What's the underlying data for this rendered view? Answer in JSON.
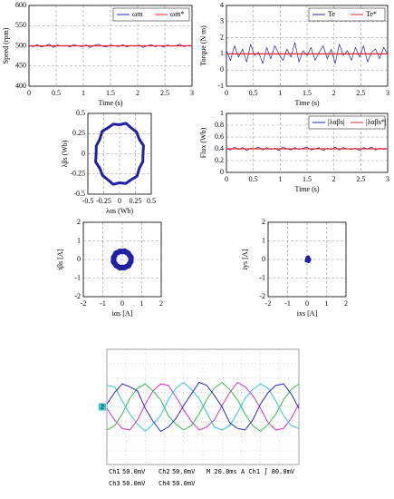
{
  "chart_data": [
    {
      "type": "line",
      "ylabel": "Speed (rpm)",
      "xlabel": "Time (s)",
      "xlim": [
        0,
        3
      ],
      "xticks": [
        0,
        0.5,
        1,
        1.5,
        2,
        2.5,
        3
      ],
      "ylim": [
        400,
        600
      ],
      "yticks": [
        400,
        450,
        500,
        550,
        600
      ],
      "grid": true,
      "legend": "upper right",
      "x": [
        0,
        0.075,
        0.15,
        0.225,
        0.3,
        0.375,
        0.45,
        0.525,
        0.6,
        0.675,
        0.75,
        0.825,
        0.9,
        0.975,
        1.05,
        1.125,
        1.2,
        1.275,
        1.35,
        1.425,
        1.5,
        1.575,
        1.65,
        1.725,
        1.8,
        1.875,
        1.95,
        2.025,
        2.1,
        2.175,
        2.25,
        2.325,
        2.4,
        2.475,
        2.55,
        2.625,
        2.7,
        2.775,
        2.85,
        2.925,
        3
      ],
      "series": [
        {
          "name": "ωm",
          "color": "#1f1fa8",
          "values": [
            501,
            498,
            503,
            497,
            500,
            504,
            496,
            502,
            499,
            501,
            497,
            503,
            500,
            498,
            502,
            496,
            501,
            504,
            499,
            497,
            502,
            500,
            498,
            503,
            497,
            501,
            499,
            502,
            496,
            500,
            503,
            498,
            501,
            497,
            502,
            499,
            500,
            504,
            498,
            501,
            500
          ]
        },
        {
          "name": "ωm*",
          "color": "#e8202a",
          "x": [
            0,
            3
          ],
          "values": [
            500,
            500
          ]
        }
      ]
    },
    {
      "type": "line",
      "ylabel": "Torque (N·m)",
      "xlabel": "Time (s)",
      "xlim": [
        0,
        3
      ],
      "xticks": [
        0,
        0.5,
        1,
        1.5,
        2,
        2.5,
        3
      ],
      "ylim": [
        -1,
        4
      ],
      "yticks": [
        -1,
        0,
        1,
        2,
        3,
        4
      ],
      "grid": true,
      "legend": "upper right",
      "x": [
        0,
        0.075,
        0.15,
        0.225,
        0.3,
        0.375,
        0.45,
        0.525,
        0.6,
        0.675,
        0.75,
        0.825,
        0.9,
        0.975,
        1.05,
        1.125,
        1.2,
        1.275,
        1.35,
        1.425,
        1.5,
        1.575,
        1.65,
        1.725,
        1.8,
        1.875,
        1.95,
        2.025,
        2.1,
        2.175,
        2.25,
        2.325,
        2.4,
        2.475,
        2.55,
        2.625,
        2.7,
        2.775,
        2.85,
        2.925,
        3
      ],
      "series": [
        {
          "name": "Te",
          "color": "#1f1fa8",
          "values": [
            1.2,
            0.6,
            1.5,
            0.8,
            1.3,
            0.5,
            1.6,
            0.9,
            1.1,
            0.4,
            1.4,
            0.7,
            1.5,
            1.0,
            0.6,
            1.3,
            0.8,
            1.7,
            0.5,
            1.2,
            0.9,
            1.4,
            0.6,
            1.1,
            1.5,
            0.7,
            1.3,
            0.4,
            1.6,
            0.9,
            1.2,
            0.6,
            1.4,
            0.8,
            1.5,
            0.5,
            1.1,
            1.3,
            0.7,
            1.4,
            1.0
          ]
        },
        {
          "name": "Te*",
          "color": "#e8202a",
          "x": [
            0,
            3
          ],
          "values": [
            1,
            1
          ]
        }
      ]
    },
    {
      "type": "line",
      "ylabel": "λβs (Wb)",
      "xlabel": "λαs (Wb)",
      "xlim": [
        -0.5,
        0.5
      ],
      "xticks": [
        -0.5,
        -0.25,
        0,
        0.25,
        0.5
      ],
      "ylim": [
        -0.5,
        0.5
      ],
      "yticks": [
        -0.5,
        -0.25,
        0,
        0.25,
        0.5
      ],
      "grid": true,
      "series": [
        {
          "color": "#1f1fa8",
          "x": [
            0.37,
            0.377,
            0.312,
            0.269,
            0.185,
            0.101,
            0,
            -0.098,
            -0.185,
            -0.276,
            -0.312,
            -0.367,
            -0.37,
            -0.377,
            -0.312,
            -0.269,
            -0.185,
            -0.101,
            0,
            0.098,
            0.185,
            0.276,
            0.312,
            0.367,
            0.37
          ],
          "values": [
            0,
            0.101,
            0.18,
            0.269,
            0.32,
            0.377,
            0.36,
            0.367,
            0.32,
            0.276,
            0.18,
            0.098,
            0,
            -0.101,
            -0.18,
            -0.269,
            -0.32,
            -0.377,
            -0.36,
            -0.367,
            -0.32,
            -0.276,
            -0.18,
            -0.098,
            0
          ]
        }
      ]
    },
    {
      "type": "line",
      "ylabel": "Flux (Wb)",
      "xlabel": "Time (s)",
      "xlim": [
        0,
        3
      ],
      "xticks": [
        0,
        0.5,
        1,
        1.5,
        2,
        2.5,
        3
      ],
      "ylim": [
        0,
        1
      ],
      "yticks": [
        0,
        0.2,
        0.4,
        0.6,
        0.8,
        1
      ],
      "grid": true,
      "legend": "upper right",
      "x": [
        0,
        0.075,
        0.15,
        0.225,
        0.3,
        0.375,
        0.45,
        0.525,
        0.6,
        0.675,
        0.75,
        0.825,
        0.9,
        0.975,
        1.05,
        1.125,
        1.2,
        1.275,
        1.35,
        1.425,
        1.5,
        1.575,
        1.65,
        1.725,
        1.8,
        1.875,
        1.95,
        2.025,
        2.1,
        2.175,
        2.25,
        2.325,
        2.4,
        2.475,
        2.55,
        2.625,
        2.7,
        2.775,
        2.85,
        2.925,
        3
      ],
      "series": [
        {
          "name": "|λαβs|",
          "color": "#1f1fa8",
          "values": [
            0.41,
            0.38,
            0.43,
            0.39,
            0.42,
            0.37,
            0.41,
            0.4,
            0.43,
            0.38,
            0.42,
            0.39,
            0.41,
            0.37,
            0.43,
            0.4,
            0.38,
            0.42,
            0.39,
            0.41,
            0.43,
            0.38,
            0.4,
            0.42,
            0.37,
            0.41,
            0.39,
            0.43,
            0.38,
            0.42,
            0.4,
            0.39,
            0.41,
            0.37,
            0.42,
            0.4,
            0.43,
            0.38,
            0.41,
            0.39,
            0.4
          ]
        },
        {
          "name": "|λαβs*|",
          "color": "#e8202a",
          "x": [
            0,
            3
          ],
          "values": [
            0.4,
            0.4
          ]
        }
      ]
    },
    {
      "type": "line",
      "ylabel": "iβs [A]",
      "xlabel": "iαs [A]",
      "xlim": [
        -2,
        2
      ],
      "xticks": [
        -2,
        -1,
        0,
        1,
        2
      ],
      "ylim": [
        -2,
        2
      ],
      "yticks": [
        -2,
        -1,
        0,
        1,
        2
      ],
      "grid": true,
      "series": [
        {
          "color": "#1f1fa8",
          "x": [
            0.44,
            0.45,
            0.37,
            0.32,
            0.22,
            0.12,
            0,
            -0.12,
            -0.22,
            -0.33,
            -0.37,
            -0.44,
            -0.44,
            -0.45,
            -0.37,
            -0.32,
            -0.22,
            -0.12,
            0,
            0.12,
            0.22,
            0.33,
            0.37,
            0.44,
            0.44
          ],
          "values": [
            0,
            0.12,
            0.22,
            0.32,
            0.38,
            0.45,
            0.43,
            0.44,
            0.38,
            0.33,
            0.22,
            0.12,
            0,
            -0.12,
            -0.22,
            -0.32,
            -0.38,
            -0.45,
            -0.43,
            -0.44,
            -0.38,
            -0.33,
            -0.22,
            -0.12,
            0
          ]
        }
      ]
    },
    {
      "type": "line",
      "ylabel": "iys [A]",
      "xlabel": "ixs [A]",
      "xlim": [
        -2,
        2
      ],
      "xticks": [
        -2,
        -1,
        0,
        1,
        2
      ],
      "ylim": [
        -2,
        2
      ],
      "yticks": [
        -2,
        -1,
        0,
        1,
        2
      ],
      "grid": true,
      "series": [
        {
          "color": "#1f1fa8",
          "x": [
            0.05,
            0.15,
            0.1,
            -0.05,
            0,
            0.12,
            -0.02,
            0.08,
            0.05
          ],
          "values": [
            0.1,
            0.02,
            -0.12,
            -0.08,
            0.12,
            -0.05,
            0,
            0.15,
            0.1
          ]
        }
      ]
    },
    {
      "type": "scope",
      "marker": "2",
      "timebase": "M 20.0ms",
      "trigger": "A  Ch1  ∫  80.0mV",
      "ylim": [
        -4,
        4
      ],
      "series": [
        {
          "name": "Ch1",
          "scale": "50.0mV",
          "color": "#2b2bd0",
          "values": [
            0.2,
            1.0,
            1.6,
            1.4,
            1.1,
            -0.1,
            -1.0,
            -1.7,
            -1.4,
            -0.8,
            0.1,
            0.9,
            1.7,
            1.5,
            0.8,
            0,
            -1.1,
            -1.5,
            -1.6,
            -0.9,
            0.2,
            1.0,
            1.5,
            1.6,
            0.9,
            -0.1
          ]
        },
        {
          "name": "Ch2",
          "scale": "50.0mV",
          "color": "#2ec8d8",
          "values": [
            1.5,
            1.4,
            0.4,
            -0.5,
            -1.2,
            -1.7,
            -1.2,
            -0.6,
            0.5,
            1.3,
            1.7,
            1.2,
            0.6,
            -0.4,
            -1.4,
            -1.6,
            -1.3,
            -0.4,
            0.6,
            1.2,
            1.6,
            1.3,
            0.4,
            -0.6,
            -1.3,
            -1.5
          ]
        },
        {
          "name": "Ch3",
          "scale": "50.0mV",
          "color": "#d830d0",
          "values": [
            -0.1,
            -0.9,
            -1.5,
            -1.6,
            -0.9,
            0.2,
            1.1,
            1.6,
            1.5,
            0.7,
            -0.2,
            -1.0,
            -1.6,
            -1.4,
            -0.9,
            0.1,
            1.0,
            1.7,
            1.4,
            0.8,
            -0.1,
            -1.1,
            -1.6,
            -1.5,
            -0.8,
            0.2
          ]
        },
        {
          "name": "Ch4",
          "scale": "50.0mV",
          "color": "#30c040",
          "values": [
            -1.6,
            -1.3,
            -0.5,
            0.6,
            1.3,
            1.6,
            1.1,
            0.5,
            -0.6,
            -1.2,
            -1.6,
            -1.3,
            -0.5,
            0.5,
            1.3,
            1.7,
            1.2,
            0.5,
            -0.5,
            -1.3,
            -1.7,
            -1.2,
            -0.5,
            0.5,
            1.2,
            1.6
          ]
        }
      ]
    }
  ]
}
